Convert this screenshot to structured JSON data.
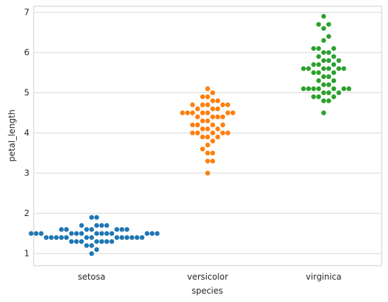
{
  "chart_data": {
    "type": "scatter",
    "subtype": "swarm",
    "title": "",
    "xlabel": "species",
    "ylabel": "petal_length",
    "categories": [
      "setosa",
      "versicolor",
      "virginica"
    ],
    "ylim": [
      0.7,
      7.15
    ],
    "yticks": [
      1,
      2,
      3,
      4,
      5,
      6,
      7
    ],
    "grid": true,
    "legend": "none",
    "colors": [
      "#1f77b4",
      "#ff7f0e",
      "#2ca02c"
    ],
    "series": [
      {
        "category": "setosa",
        "values": [
          1.4,
          1.4,
          1.3,
          1.5,
          1.4,
          1.7,
          1.4,
          1.5,
          1.4,
          1.5,
          1.5,
          1.6,
          1.4,
          1.1,
          1.2,
          1.5,
          1.3,
          1.4,
          1.7,
          1.5,
          1.7,
          1.5,
          1.0,
          1.7,
          1.9,
          1.6,
          1.6,
          1.5,
          1.4,
          1.6,
          1.6,
          1.5,
          1.5,
          1.4,
          1.5,
          1.2,
          1.3,
          1.4,
          1.3,
          1.5,
          1.3,
          1.3,
          1.3,
          1.6,
          1.9,
          1.4,
          1.6,
          1.4,
          1.5,
          1.4
        ]
      },
      {
        "category": "versicolor",
        "values": [
          4.7,
          4.5,
          4.9,
          4.0,
          4.6,
          4.5,
          4.7,
          3.3,
          4.6,
          3.9,
          3.5,
          4.2,
          4.0,
          4.7,
          3.6,
          4.4,
          4.5,
          4.1,
          4.5,
          3.9,
          4.8,
          4.0,
          4.9,
          4.7,
          4.3,
          4.4,
          4.8,
          5.0,
          4.5,
          3.5,
          3.8,
          3.7,
          3.9,
          5.1,
          4.5,
          4.5,
          4.7,
          4.4,
          4.1,
          4.0,
          4.4,
          4.6,
          4.0,
          3.3,
          4.2,
          4.2,
          4.2,
          4.3,
          3.0,
          4.1
        ]
      },
      {
        "category": "virginica",
        "values": [
          6.0,
          5.1,
          5.9,
          5.6,
          5.8,
          6.6,
          4.5,
          6.3,
          5.8,
          6.1,
          5.1,
          5.3,
          5.5,
          5.0,
          5.1,
          5.3,
          5.5,
          6.7,
          6.9,
          5.0,
          5.7,
          4.9,
          6.7,
          4.9,
          5.7,
          6.0,
          4.8,
          4.9,
          5.6,
          5.8,
          6.1,
          6.4,
          5.6,
          5.1,
          5.6,
          6.1,
          5.6,
          5.5,
          4.8,
          5.4,
          5.6,
          5.1,
          5.1,
          5.9,
          5.7,
          5.2,
          5.0,
          5.2,
          5.4,
          5.1
        ]
      }
    ]
  }
}
